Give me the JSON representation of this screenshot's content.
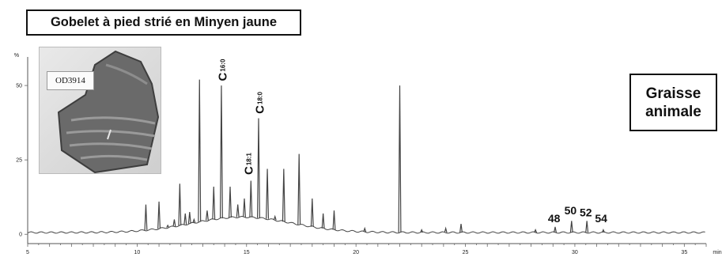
{
  "title_box": "Gobelet à pied strié en Minyen jaune",
  "note_box": "Graisse\nanimale",
  "photo": {
    "label": "OD3914"
  },
  "colors": {
    "trace": "#444444",
    "text": "#111111",
    "sherd": "#6a6a6a"
  },
  "chart_data": {
    "type": "line",
    "title": "Gobelet à pied strié en Minyen jaune",
    "xlabel": "min",
    "ylabel": "%",
    "xlim": [
      5,
      36
    ],
    "ylim": [
      -1,
      58
    ],
    "x_ticks": [
      5,
      10,
      15,
      20,
      25,
      30,
      35
    ],
    "x_tick_labels": [
      "5",
      "10",
      "15",
      "20",
      "25",
      "30",
      "35"
    ],
    "x_unit_label": "min",
    "y_ticks": [
      0,
      25,
      50
    ],
    "y_tick_labels": [
      "0",
      "25",
      "50"
    ],
    "y_unit_label": "%",
    "grid": false,
    "baseline": 0.6,
    "hump": {
      "center": 14.8,
      "height": 5.2,
      "width": 3.2
    },
    "peaks": [
      {
        "x": 10.4,
        "y": 10
      },
      {
        "x": 11.0,
        "y": 11
      },
      {
        "x": 11.4,
        "y": 3
      },
      {
        "x": 11.7,
        "y": 5
      },
      {
        "x": 11.95,
        "y": 17
      },
      {
        "x": 12.2,
        "y": 7
      },
      {
        "x": 12.4,
        "y": 7.5
      },
      {
        "x": 12.6,
        "y": 5
      },
      {
        "x": 12.85,
        "y": 52
      },
      {
        "x": 13.2,
        "y": 8
      },
      {
        "x": 13.5,
        "y": 16
      },
      {
        "x": 13.85,
        "y": 50
      },
      {
        "x": 14.25,
        "y": 16
      },
      {
        "x": 14.6,
        "y": 10
      },
      {
        "x": 14.9,
        "y": 12
      },
      {
        "x": 15.2,
        "y": 18
      },
      {
        "x": 15.55,
        "y": 39
      },
      {
        "x": 15.95,
        "y": 22
      },
      {
        "x": 16.3,
        "y": 6
      },
      {
        "x": 16.7,
        "y": 22
      },
      {
        "x": 17.4,
        "y": 27
      },
      {
        "x": 18.0,
        "y": 12
      },
      {
        "x": 18.5,
        "y": 7
      },
      {
        "x": 19.0,
        "y": 8
      },
      {
        "x": 20.4,
        "y": 2
      },
      {
        "x": 22.0,
        "y": 50
      },
      {
        "x": 23.0,
        "y": 1.5
      },
      {
        "x": 24.1,
        "y": 2
      },
      {
        "x": 24.8,
        "y": 3.5
      },
      {
        "x": 28.2,
        "y": 1.5
      },
      {
        "x": 29.1,
        "y": 2.5
      },
      {
        "x": 29.85,
        "y": 4.5
      },
      {
        "x": 30.55,
        "y": 4.5
      },
      {
        "x": 31.3,
        "y": 1.5
      }
    ],
    "annotations": [
      {
        "text": "C",
        "subscript": "16:0",
        "x": 13.9,
        "y": 51.5,
        "rotated": true
      },
      {
        "text": "C",
        "subscript": "18:0",
        "x": 15.6,
        "y": 40.5,
        "rotated": true
      },
      {
        "text": "C",
        "subscript": "18:1",
        "x": 15.1,
        "y": 20,
        "rotated": true
      },
      {
        "text": "48",
        "x": 29.05,
        "y": 3.5,
        "rotated": false
      },
      {
        "text": "50",
        "x": 29.8,
        "y": 6.2,
        "rotated": false
      },
      {
        "text": "52",
        "x": 30.5,
        "y": 5.5,
        "rotated": false
      },
      {
        "text": "54",
        "x": 31.2,
        "y": 3.5,
        "rotated": false
      }
    ]
  }
}
